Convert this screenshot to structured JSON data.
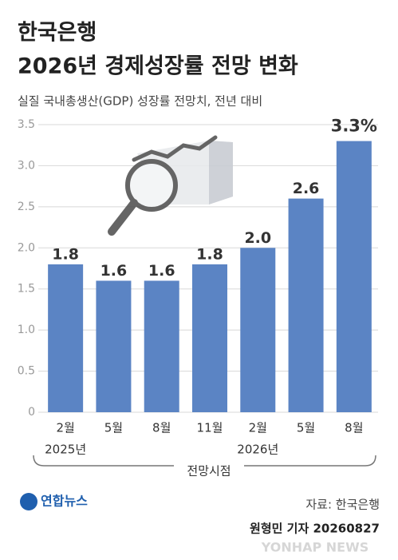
{
  "chart_data": {
    "type": "bar",
    "title": "한국은행",
    "title_line2": "2026년 경제성장률 전망 변화",
    "subtitle": "실질 국내총생산(GDP) 성장률 전망치, 전년 대비",
    "categories": [
      "2월",
      "5월",
      "8월",
      "11월",
      "2월",
      "5월",
      "8월"
    ],
    "x_groups": [
      "2025년",
      null,
      null,
      null,
      "2026년",
      null,
      null
    ],
    "x_label": "전망시점",
    "values": [
      1.8,
      1.6,
      1.6,
      1.8,
      2.0,
      2.6,
      3.3
    ],
    "value_labels": [
      "1.8",
      "1.6",
      "1.6",
      "1.8",
      "2.0",
      "2.6",
      "3.3%"
    ],
    "color": "#5b84c4",
    "ylim": [
      0,
      3.5
    ],
    "yticks": [
      0,
      0.5,
      {
        "value": 1,
        "label": "1.0"
      },
      1.5,
      {
        "value": 2,
        "label": "2.0"
      },
      2.5,
      {
        "value": 3,
        "label": "3.0"
      },
      3.5
    ],
    "grid": true,
    "source": "자료: 한국은행",
    "credit": "원형민 기자 20260827",
    "logo": "연합뉴스",
    "watermark": "YONHAP NEWS"
  }
}
